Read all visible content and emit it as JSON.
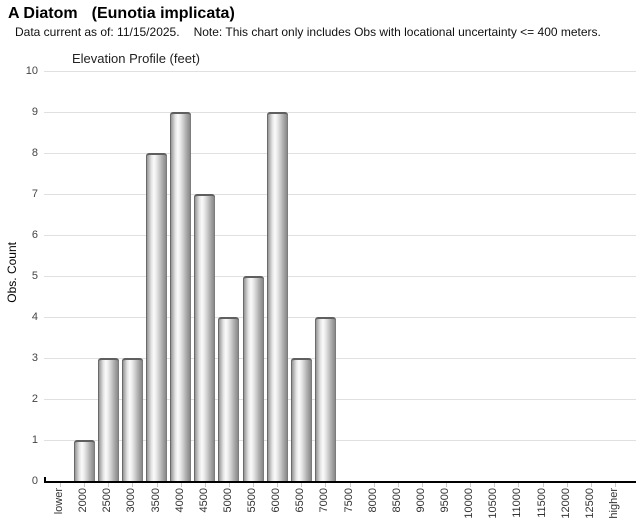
{
  "header": {
    "title_common": "A Diatom",
    "title_scientific": "(Eunotia implicata)",
    "subtitle_date": "Data current as of: 11/15/2025.",
    "subtitle_note": "Note: This chart only includes Obs with locational uncertainty <= 400 meters."
  },
  "chart_data": {
    "type": "bar",
    "title": "Elevation Profile (feet)",
    "xlabel": "",
    "ylabel": "Obs. Count",
    "categories": [
      "lower",
      "2000",
      "2500",
      "3000",
      "3500",
      "4000",
      "4500",
      "5000",
      "5500",
      "6000",
      "6500",
      "7000",
      "7500",
      "8000",
      "8500",
      "9000",
      "9500",
      "10000",
      "10500",
      "11000",
      "11500",
      "12000",
      "12500",
      "higher"
    ],
    "values": [
      0,
      1,
      3,
      3,
      8,
      9,
      7,
      4,
      5,
      9,
      3,
      4,
      0,
      0,
      0,
      0,
      0,
      0,
      0,
      0,
      0,
      0,
      0,
      0
    ],
    "ylim": [
      0,
      10
    ],
    "ytick_interval": 1,
    "grid": true,
    "legend": "none",
    "bar_color_gradient": [
      "#707070",
      "#fbfbfb",
      "#7d7d7d"
    ],
    "bar_cap_color": "#5f5f5f",
    "gridline_color": "#e0e0e0",
    "axis_color": "#000000",
    "label_color": "#333333"
  }
}
